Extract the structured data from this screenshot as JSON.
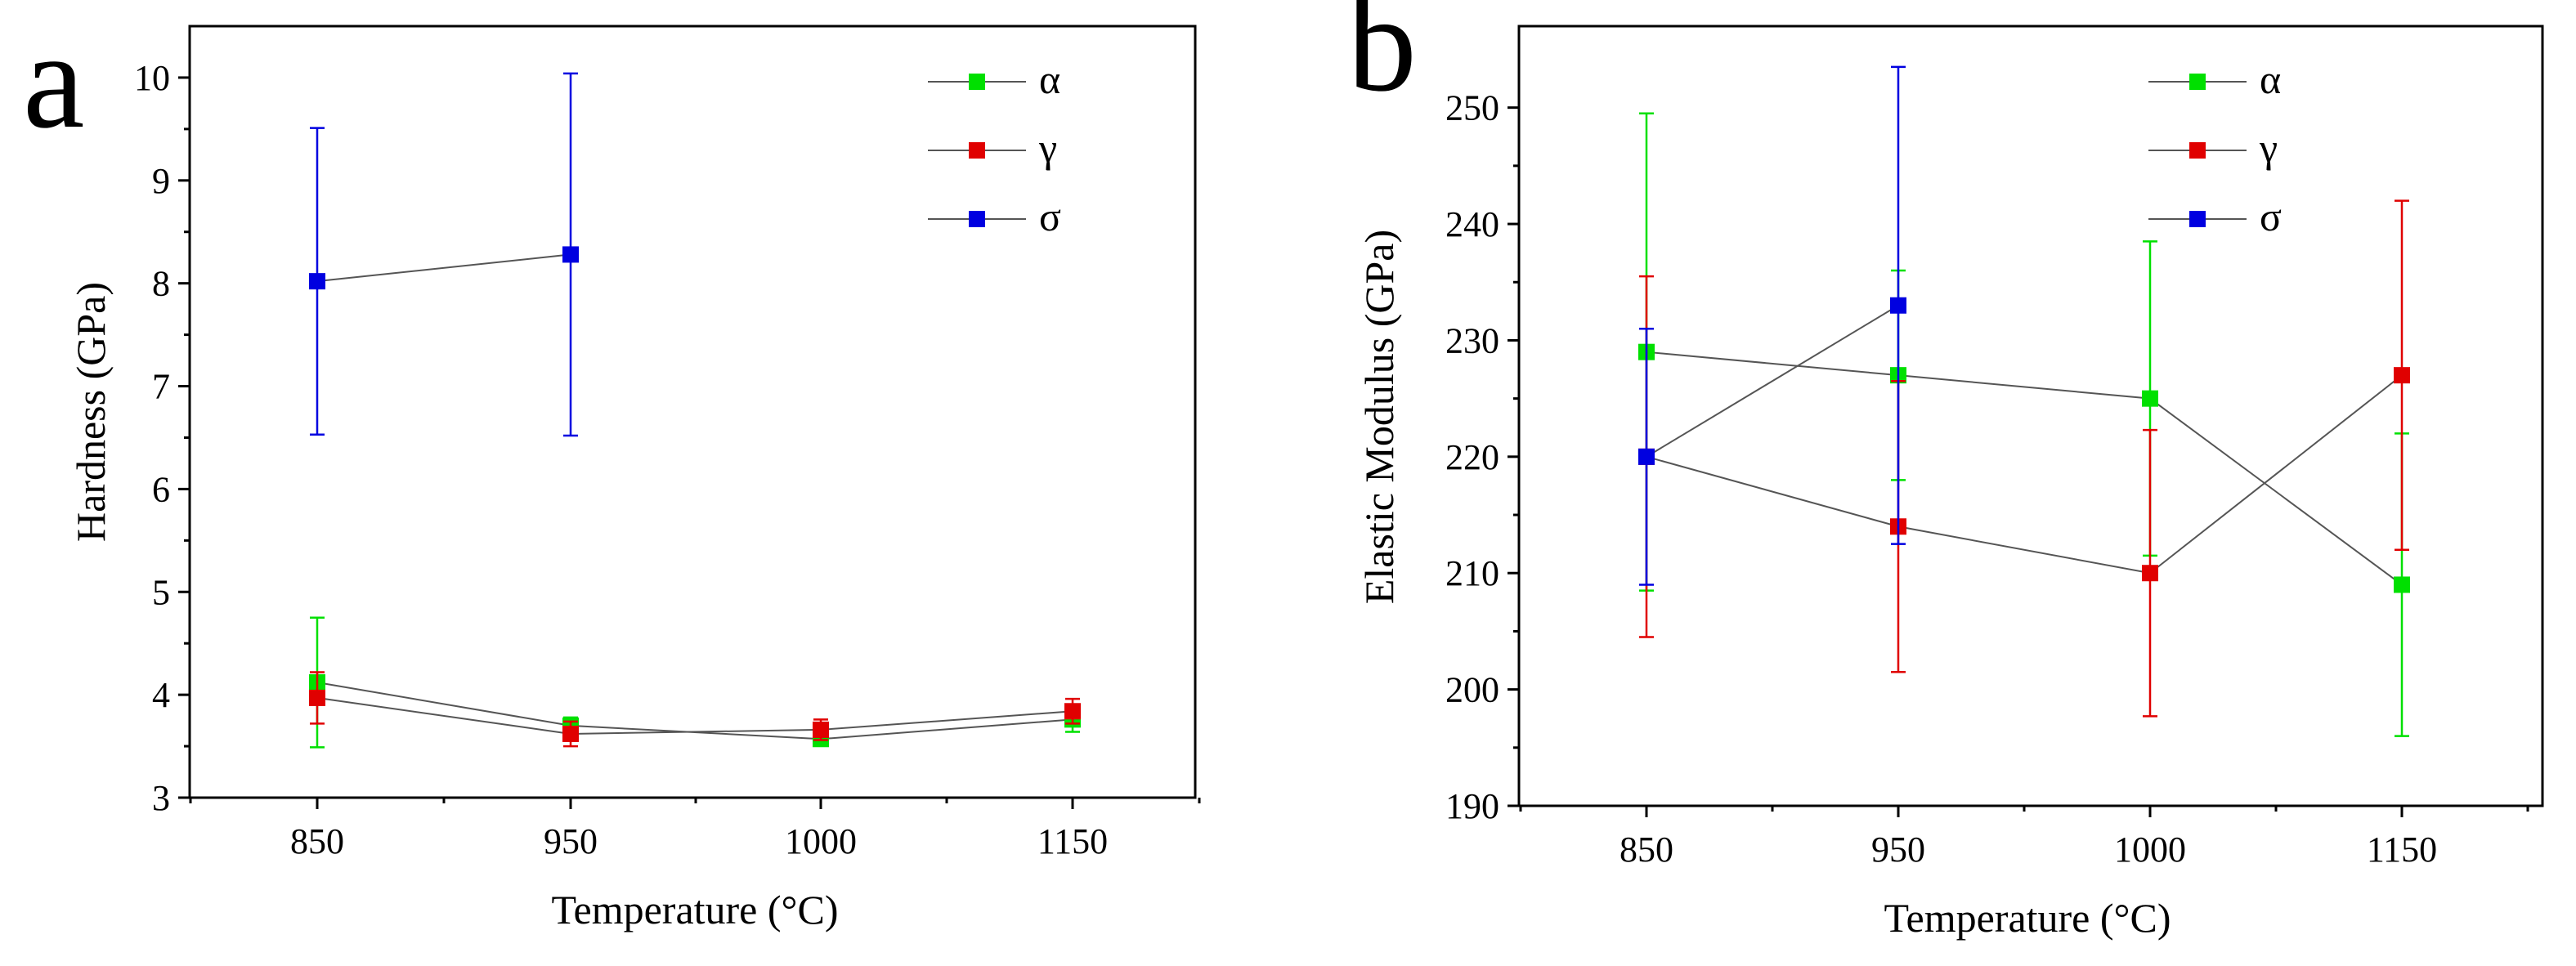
{
  "chart_data": [
    {
      "type": "line",
      "panel_label": "a",
      "xlabel": "Temperature (°C)",
      "ylabel": "Hardness (GPa)",
      "categories": [
        "850",
        "950",
        "1000",
        "1150"
      ],
      "ylim": [
        3,
        10.5
      ],
      "yticks": [
        3,
        4,
        5,
        6,
        7,
        8,
        9,
        10
      ],
      "legend_position": "top-right",
      "series": [
        {
          "name": "α",
          "color": "#00e000",
          "values": [
            4.12,
            3.7,
            3.57,
            3.76
          ],
          "errors": [
            0.63,
            0.08,
            0.06,
            0.12
          ]
        },
        {
          "name": "γ",
          "color": "#e00000",
          "values": [
            3.97,
            3.62,
            3.66,
            3.84
          ],
          "errors": [
            0.25,
            0.12,
            0.1,
            0.12
          ]
        },
        {
          "name": "σ",
          "color": "#0000e0",
          "values": [
            8.02,
            8.28,
            null,
            null
          ],
          "errors": [
            1.49,
            1.76,
            null,
            null
          ]
        }
      ]
    },
    {
      "type": "line",
      "panel_label": "b",
      "xlabel": "Temperature (°C)",
      "ylabel": "Elastic Modulus (GPa)",
      "categories": [
        "850",
        "950",
        "1000",
        "1150"
      ],
      "ylim": [
        190,
        257
      ],
      "yticks": [
        190,
        200,
        210,
        220,
        230,
        240,
        250
      ],
      "legend_position": "top-right",
      "series": [
        {
          "name": "α",
          "color": "#00e000",
          "values": [
            229,
            227,
            225,
            209
          ],
          "errors": [
            20.5,
            9,
            13.5,
            13
          ]
        },
        {
          "name": "γ",
          "color": "#e00000",
          "values": [
            220,
            214,
            210,
            227
          ],
          "errors": [
            15.5,
            12.5,
            12.3,
            15
          ]
        },
        {
          "name": "σ",
          "color": "#0000e0",
          "values": [
            220,
            233,
            null,
            null
          ],
          "errors": [
            11,
            20.5,
            null,
            null
          ]
        }
      ]
    }
  ]
}
